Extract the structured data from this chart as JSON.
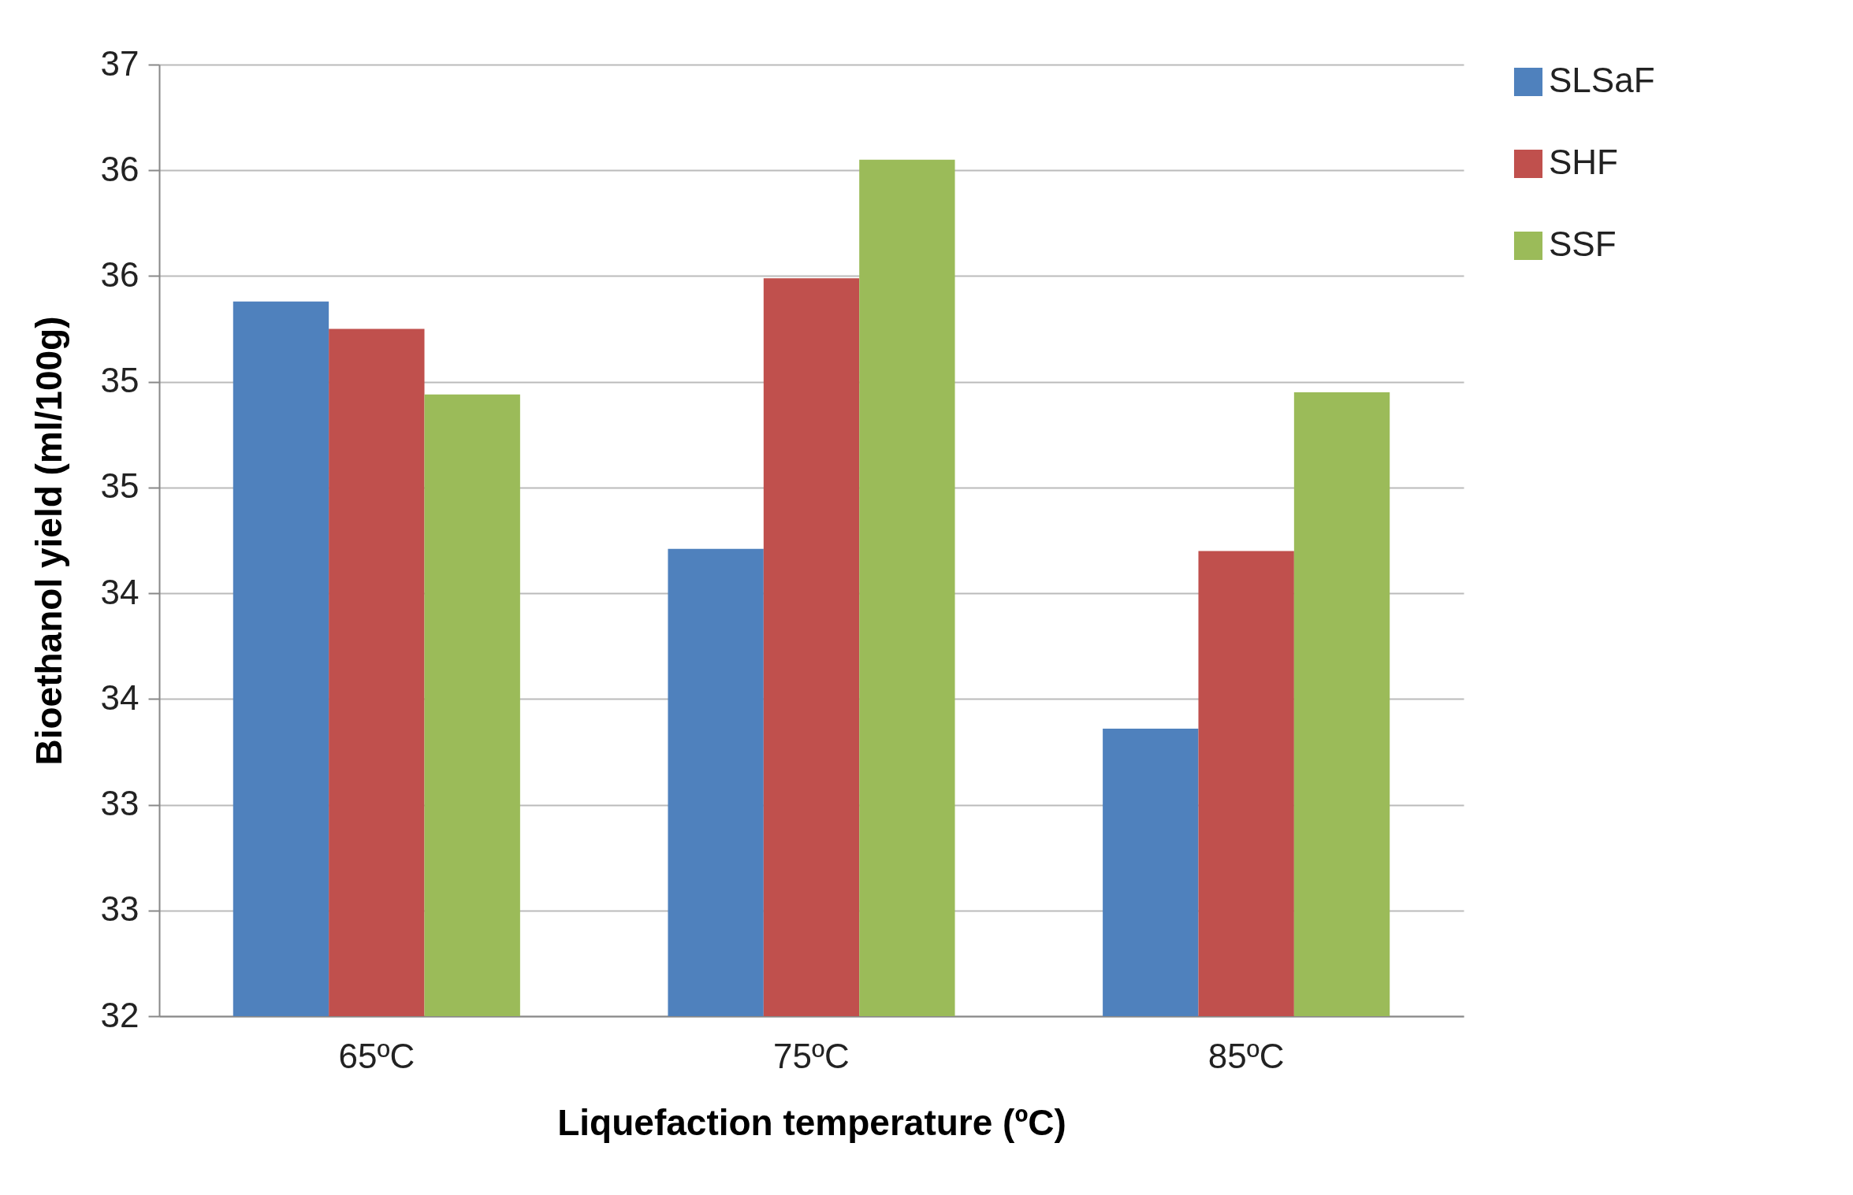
{
  "chart_data": {
    "type": "bar",
    "xlabel": "Liquefaction temperature (ºC)",
    "ylabel": "Bioethanol yield (ml/100g)",
    "categories": [
      "65ºC",
      "75ºC",
      "85ºC"
    ],
    "series": [
      {
        "name": "SLSaF",
        "color": "#4f81bd",
        "values": [
          35.38,
          34.21,
          33.36
        ]
      },
      {
        "name": "SHF",
        "color": "#c0504d",
        "values": [
          35.25,
          35.49,
          34.2
        ]
      },
      {
        "name": "SSF",
        "color": "#9bbb59",
        "values": [
          34.94,
          36.05,
          34.95
        ]
      }
    ],
    "ylim": [
      32,
      36.5
    ],
    "yticks": [
      32,
      {
        "value": 32.5,
        "label": "33"
      },
      33,
      {
        "value": 33.5,
        "label": "34"
      },
      34,
      {
        "value": 34.5,
        "label": "35"
      },
      35,
      {
        "value": 35.5,
        "label": "36"
      },
      36,
      {
        "value": 36.5,
        "label": "37"
      }
    ],
    "grid": "y",
    "legend": "right"
  }
}
